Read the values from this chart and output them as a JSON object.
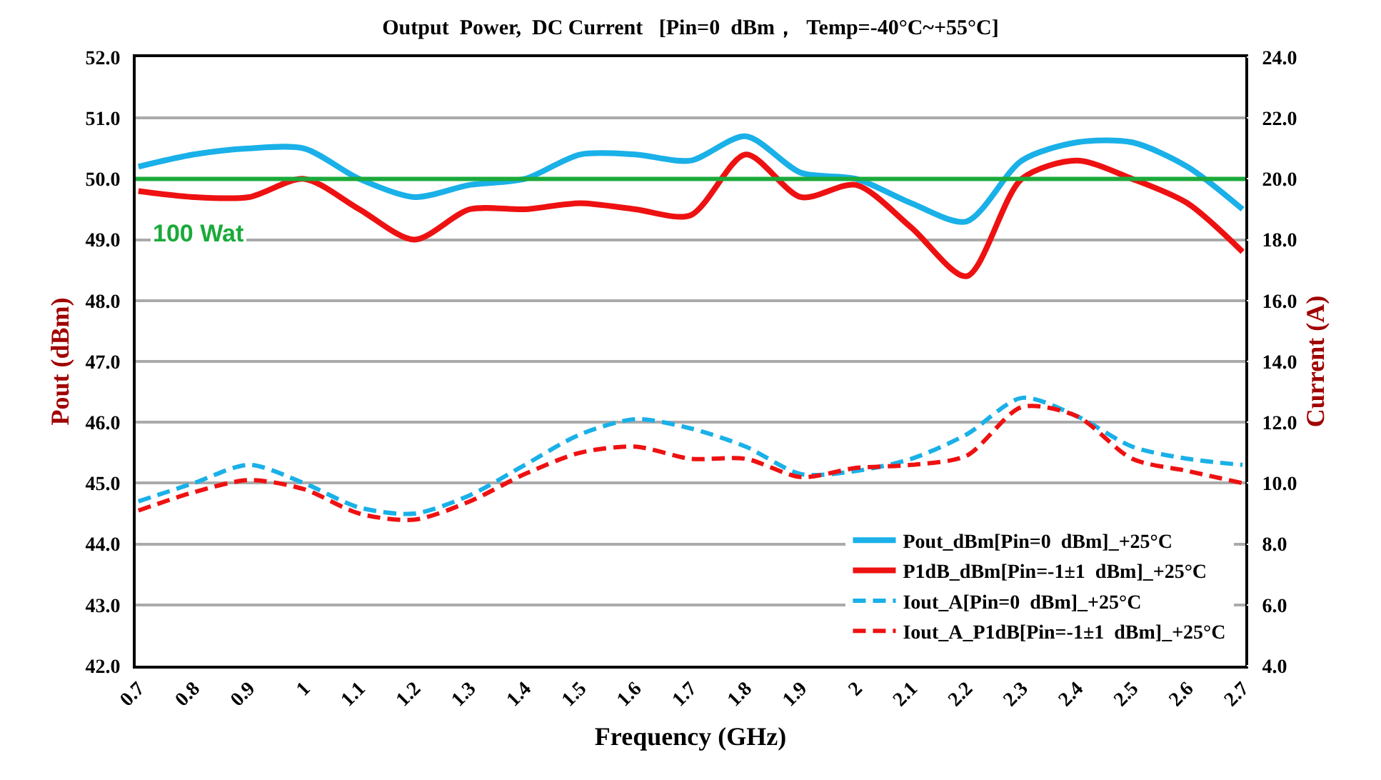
{
  "chart_data": {
    "type": "line",
    "title": "Output  Power,  DC Current   [Pin=0  dBm，  Temp=-40°C~+55°C]",
    "xlabel": "Frequency (GHz)",
    "ylabel": "Pout (dBm)",
    "y2label": "Current (A)",
    "categories": [
      "0.7",
      "0.8",
      "0.9",
      "1",
      "1.1",
      "1.2",
      "1.3",
      "1.4",
      "1.5",
      "1.6",
      "1.7",
      "1.8",
      "1.9",
      "2",
      "2.1",
      "2.2",
      "2.3",
      "2.4",
      "2.5",
      "2.6",
      "2.7"
    ],
    "series": [
      {
        "name": "Pout_dBm[Pin=0  dBm]_+25°C",
        "color": "#1ab0e8",
        "line_style": "solid",
        "values": [
          50.2,
          50.4,
          50.5,
          50.5,
          50.0,
          49.7,
          49.9,
          50.0,
          50.4,
          50.4,
          50.3,
          50.7,
          50.1,
          50.0,
          49.6,
          49.3,
          50.3,
          50.6,
          50.6,
          50.2,
          49.5
        ]
      },
      {
        "name": "P1dB_dBm[Pin=-1±1  dBm]_+25°C",
        "color": "#ee1111",
        "line_style": "solid",
        "values": [
          49.8,
          49.7,
          49.7,
          50.0,
          49.5,
          49.0,
          49.5,
          49.5,
          49.6,
          49.5,
          49.4,
          50.4,
          49.7,
          49.9,
          49.2,
          48.4,
          50.0,
          50.3,
          50.0,
          49.6,
          48.8
        ]
      },
      {
        "name": "Iout_A[Pin=0  dBm]_+25°C",
        "color": "#1ab0e8",
        "line_style": "dashed",
        "axis": "y2",
        "values": [
          9.4,
          10.0,
          10.6,
          10.0,
          9.2,
          9.0,
          9.6,
          10.6,
          11.6,
          12.1,
          11.8,
          11.2,
          10.3,
          10.4,
          10.8,
          11.6,
          12.8,
          12.2,
          11.2,
          10.8,
          10.6
        ]
      },
      {
        "name": "Iout_A_P1dB[Pin=-1±1  dBm]_+25°C",
        "color": "#ee1111",
        "line_style": "dashed",
        "axis": "y2",
        "values": [
          9.1,
          9.7,
          10.1,
          9.8,
          9.0,
          8.8,
          9.4,
          10.3,
          11.0,
          11.2,
          10.8,
          10.8,
          10.2,
          10.5,
          10.6,
          10.9,
          12.5,
          12.2,
          10.8,
          10.4,
          10.0
        ]
      }
    ],
    "ylim": [
      42,
      52
    ],
    "yticks": [
      {
        "value": 42,
        "label": "42.0"
      },
      {
        "value": 43,
        "label": "43.0"
      },
      {
        "value": 44,
        "label": "44.0"
      },
      {
        "value": 45,
        "label": "45.0"
      },
      {
        "value": 46,
        "label": "46.0"
      },
      {
        "value": 47,
        "label": "47.0"
      },
      {
        "value": 48,
        "label": "48.0"
      },
      {
        "value": 49,
        "label": "49.0"
      },
      {
        "value": 50,
        "label": "50.0"
      },
      {
        "value": 51,
        "label": "51.0"
      },
      {
        "value": 52,
        "label": "52.0"
      }
    ],
    "y2lim": [
      4,
      24
    ],
    "y2ticks": [
      {
        "value": 4,
        "label": "4.0"
      },
      {
        "value": 6,
        "label": "6.0"
      },
      {
        "value": 8,
        "label": "8.0"
      },
      {
        "value": 10,
        "label": "10.0"
      },
      {
        "value": 12,
        "label": "12.0"
      },
      {
        "value": 14,
        "label": "14.0"
      },
      {
        "value": 16,
        "label": "16.0"
      },
      {
        "value": 18,
        "label": "18.0"
      },
      {
        "value": 20,
        "label": "20.0"
      },
      {
        "value": 22,
        "label": "22.0"
      },
      {
        "value": 24,
        "label": "24.0"
      }
    ],
    "ref_lines": [
      {
        "axis": "y",
        "value": 50.0,
        "label": "100 Wat",
        "color": "#1aaa3a"
      }
    ],
    "grid": "y",
    "legend": "bottom right",
    "marker": "none"
  }
}
